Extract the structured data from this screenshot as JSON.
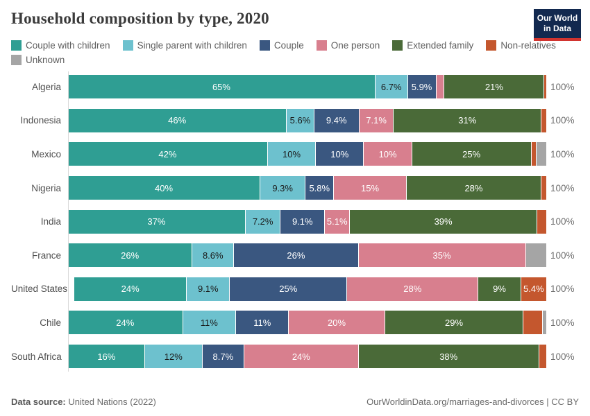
{
  "header": {
    "title": "Household composition by type, 2020",
    "logo_line1": "Our World",
    "logo_line2": "in Data",
    "logo_bg": "#12294f",
    "logo_stripe": "#d1342f"
  },
  "chart_data": {
    "type": "bar",
    "orientation": "horizontal",
    "stacked": true,
    "unit": "%",
    "xlim": [
      0,
      100
    ],
    "title": "Household composition by type, 2020",
    "legend_position": "top",
    "grid": false,
    "categories": [
      {
        "key": "couple_with_children",
        "label": "Couple with children",
        "color": "#2f9e93",
        "label_color": "#ffffff"
      },
      {
        "key": "single_parent_with_children",
        "label": "Single parent with children",
        "color": "#6dc1ce",
        "label_color": "#1a1a1a"
      },
      {
        "key": "couple",
        "label": "Couple",
        "color": "#3a5780",
        "label_color": "#ffffff"
      },
      {
        "key": "one_person",
        "label": "One person",
        "color": "#d87f8e",
        "label_color": "#ffffff"
      },
      {
        "key": "extended_family",
        "label": "Extended family",
        "color": "#4a6a38",
        "label_color": "#ffffff"
      },
      {
        "key": "non_relatives",
        "label": "Non-relatives",
        "color": "#c4572e",
        "label_color": "#ffffff"
      },
      {
        "key": "unknown",
        "label": "Unknown",
        "color": "#a5a5a5",
        "label_color": "#ffffff"
      }
    ],
    "rows": [
      {
        "country": "Algeria",
        "total_label": "100%",
        "segments": [
          {
            "category": "couple_with_children",
            "value": 65,
            "label": "65%"
          },
          {
            "category": "single_parent_with_children",
            "value": 6.7,
            "label": "6.7%"
          },
          {
            "category": "couple",
            "value": 5.9,
            "label": "5.9%"
          },
          {
            "category": "one_person",
            "value": 1.6,
            "label": ""
          },
          {
            "category": "extended_family",
            "value": 21,
            "label": "21%"
          },
          {
            "category": "non_relatives",
            "value": 0.4,
            "label": ""
          }
        ]
      },
      {
        "country": "Indonesia",
        "total_label": "100%",
        "segments": [
          {
            "category": "couple_with_children",
            "value": 46,
            "label": "46%"
          },
          {
            "category": "single_parent_with_children",
            "value": 5.6,
            "label": "5.6%"
          },
          {
            "category": "couple",
            "value": 9.4,
            "label": "9.4%"
          },
          {
            "category": "one_person",
            "value": 7.1,
            "label": "7.1%"
          },
          {
            "category": "extended_family",
            "value": 31,
            "label": "31%"
          },
          {
            "category": "non_relatives",
            "value": 1.0,
            "label": ""
          }
        ]
      },
      {
        "country": "Mexico",
        "total_label": "100%",
        "segments": [
          {
            "category": "couple_with_children",
            "value": 42,
            "label": "42%"
          },
          {
            "category": "single_parent_with_children",
            "value": 10,
            "label": "10%"
          },
          {
            "category": "couple",
            "value": 10,
            "label": "10%"
          },
          {
            "category": "one_person",
            "value": 10,
            "label": "10%"
          },
          {
            "category": "extended_family",
            "value": 25,
            "label": "25%"
          },
          {
            "category": "non_relatives",
            "value": 1.0,
            "label": ""
          },
          {
            "category": "unknown",
            "value": 2.0,
            "label": ""
          }
        ]
      },
      {
        "country": "Nigeria",
        "total_label": "100%",
        "segments": [
          {
            "category": "couple_with_children",
            "value": 40,
            "label": "40%"
          },
          {
            "category": "single_parent_with_children",
            "value": 9.3,
            "label": "9.3%"
          },
          {
            "category": "couple",
            "value": 5.8,
            "label": "5.8%"
          },
          {
            "category": "one_person",
            "value": 15,
            "label": "15%"
          },
          {
            "category": "extended_family",
            "value": 28,
            "label": "28%"
          },
          {
            "category": "non_relatives",
            "value": 1.0,
            "label": ""
          }
        ]
      },
      {
        "country": "India",
        "total_label": "100%",
        "segments": [
          {
            "category": "couple_with_children",
            "value": 37,
            "label": "37%"
          },
          {
            "category": "single_parent_with_children",
            "value": 7.2,
            "label": "7.2%"
          },
          {
            "category": "couple",
            "value": 9.1,
            "label": "9.1%"
          },
          {
            "category": "one_person",
            "value": 5.1,
            "label": "5.1%"
          },
          {
            "category": "extended_family",
            "value": 39,
            "label": "39%"
          },
          {
            "category": "non_relatives",
            "value": 1.9,
            "label": ""
          }
        ]
      },
      {
        "country": "France",
        "total_label": "100%",
        "segments": [
          {
            "category": "couple_with_children",
            "value": 26,
            "label": "26%"
          },
          {
            "category": "single_parent_with_children",
            "value": 8.6,
            "label": "8.6%"
          },
          {
            "category": "couple",
            "value": 26,
            "label": "26%"
          },
          {
            "category": "one_person",
            "value": 35,
            "label": "35%"
          },
          {
            "category": "unknown",
            "value": 4.3,
            "label": ""
          }
        ]
      },
      {
        "country": "United States",
        "total_label": "100%",
        "segments": [
          {
            "category": "couple_with_children",
            "value": 24,
            "label": "24%"
          },
          {
            "category": "single_parent_with_children",
            "value": 9.1,
            "label": "9.1%"
          },
          {
            "category": "couple",
            "value": 25,
            "label": "25%"
          },
          {
            "category": "one_person",
            "value": 28,
            "label": "28%"
          },
          {
            "category": "extended_family",
            "value": 9,
            "label": "9%"
          },
          {
            "category": "non_relatives",
            "value": 5.4,
            "label": "5.4%"
          }
        ]
      },
      {
        "country": "Chile",
        "total_label": "100%",
        "segments": [
          {
            "category": "couple_with_children",
            "value": 24,
            "label": "24%"
          },
          {
            "category": "single_parent_with_children",
            "value": 11,
            "label": "11%"
          },
          {
            "category": "couple",
            "value": 11,
            "label": "11%"
          },
          {
            "category": "one_person",
            "value": 20,
            "label": "20%"
          },
          {
            "category": "extended_family",
            "value": 29,
            "label": "29%"
          },
          {
            "category": "non_relatives",
            "value": 3.8,
            "label": ""
          },
          {
            "category": "unknown",
            "value": 0.8,
            "label": ""
          }
        ]
      },
      {
        "country": "South Africa",
        "total_label": "100%",
        "segments": [
          {
            "category": "couple_with_children",
            "value": 16,
            "label": "16%"
          },
          {
            "category": "single_parent_with_children",
            "value": 12,
            "label": "12%"
          },
          {
            "category": "couple",
            "value": 8.7,
            "label": "8.7%"
          },
          {
            "category": "one_person",
            "value": 24,
            "label": "24%"
          },
          {
            "category": "extended_family",
            "value": 38,
            "label": "38%"
          },
          {
            "category": "non_relatives",
            "value": 1.5,
            "label": ""
          }
        ]
      }
    ]
  },
  "footer": {
    "source_label": "Data source:",
    "source_text": "United Nations (2022)",
    "credit_url": "OurWorldinData.org/marriages-and-divorces",
    "separator": "|",
    "license": "CC BY"
  }
}
